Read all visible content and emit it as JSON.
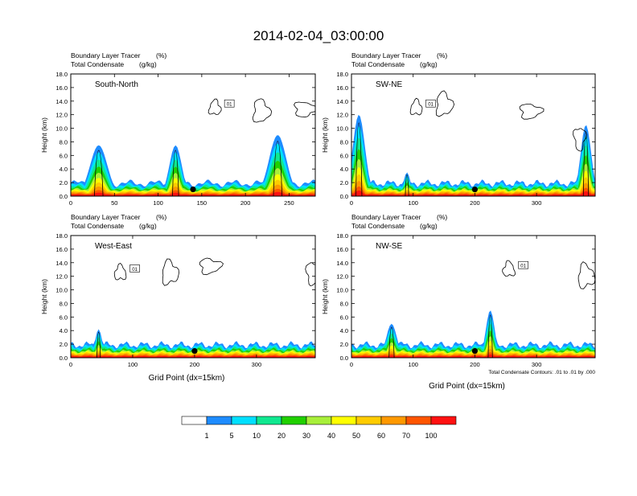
{
  "title": "2014-02-04_03:00:00",
  "legend": {
    "colors": [
      "#ffffff",
      "#1e8cff",
      "#00e0ff",
      "#10e890",
      "#20d000",
      "#a8ef3a",
      "#ffff00",
      "#ffcc00",
      "#ff9900",
      "#ff5500",
      "#ff1111"
    ],
    "labels": [
      "1",
      "5",
      "10",
      "20",
      "30",
      "40",
      "50",
      "60",
      "70",
      "100"
    ]
  },
  "common": {
    "var_label_1": "Boundary Layer Tracer",
    "var_unit_1": "(%)",
    "var_label_2": "Total Condensate",
    "var_unit_2": "(g/kg)",
    "ylabel": "Height (km)",
    "xlabel": "Grid Point (dx=15km)",
    "contour_note": "Total Condensate Contours: .01 to .01 by .000",
    "contour_label": "01"
  },
  "chart_data": [
    {
      "type": "heatmap",
      "panel_label": "South-North",
      "ylabel": "Height (km)",
      "xlabel": "",
      "xlim": [
        0,
        280
      ],
      "ylim": [
        0,
        18
      ],
      "xticks": [
        0,
        50,
        100,
        150,
        200,
        250
      ],
      "yticks": [
        "0.0",
        "2.0",
        "4.0",
        "6.0",
        "8.0",
        "10.0",
        "12.0",
        "14.0",
        "16.0",
        "18.0"
      ],
      "marker": [
        140,
        1.0
      ],
      "tracer_plumes": [
        {
          "x": 32,
          "top_km": 7.5,
          "width": 14
        },
        {
          "x": 120,
          "top_km": 7.5,
          "width": 10
        },
        {
          "x": 237,
          "top_km": 9.0,
          "width": 14
        }
      ],
      "cloud_contours_km": [
        [
          165,
          13.0
        ],
        [
          218,
          12.5
        ],
        [
          268,
          12.8
        ]
      ]
    },
    {
      "type": "heatmap",
      "panel_label": "SW-NE",
      "ylabel": "Height (km)",
      "xlabel": "",
      "xlim": [
        0,
        395
      ],
      "ylim": [
        0,
        18
      ],
      "xticks": [
        0,
        100,
        200,
        300
      ],
      "yticks": [
        "0.0",
        "2.0",
        "4.0",
        "6.0",
        "8.0",
        "10.0",
        "12.0",
        "14.0",
        "16.0",
        "18.0"
      ],
      "marker": [
        200,
        1.0
      ],
      "tracer_plumes": [
        {
          "x": 12,
          "top_km": 12.0,
          "width": 14
        },
        {
          "x": 90,
          "top_km": 3.5,
          "width": 8
        },
        {
          "x": 380,
          "top_km": 10.5,
          "width": 12
        }
      ],
      "cloud_contours_km": [
        [
          105,
          13.0
        ],
        [
          150,
          13.5
        ],
        [
          290,
          12.5
        ],
        [
          370,
          8.5
        ]
      ]
    },
    {
      "type": "heatmap",
      "panel_label": "West-East",
      "ylabel": "Height (km)",
      "xlabel": "Grid Point (dx=15km)",
      "xlim": [
        0,
        395
      ],
      "ylim": [
        0,
        18
      ],
      "xticks": [
        0,
        100,
        200,
        300
      ],
      "yticks": [
        "0.0",
        "2.0",
        "4.0",
        "6.0",
        "8.0",
        "10.0",
        "12.0",
        "14.0",
        "16.0",
        "18.0"
      ],
      "marker": [
        200,
        1.0
      ],
      "tracer_plumes": [
        {
          "x": 45,
          "top_km": 4.2,
          "width": 8
        }
      ],
      "cloud_contours_km": [
        [
          80,
          12.5
        ],
        [
          160,
          12.5
        ],
        [
          225,
          13.5
        ],
        [
          390,
          12.5
        ]
      ]
    },
    {
      "type": "heatmap",
      "panel_label": "NW-SE",
      "ylabel": "Height (km)",
      "xlabel": "Grid Point (dx=15km)",
      "xlim": [
        0,
        395
      ],
      "ylim": [
        0,
        18
      ],
      "xticks": [
        0,
        100,
        200,
        300
      ],
      "yticks": [
        "0.0",
        "2.0",
        "4.0",
        "6.0",
        "8.0",
        "10.0",
        "12.0",
        "14.0",
        "16.0",
        "18.0"
      ],
      "marker": [
        200,
        1.0
      ],
      "tracer_plumes": [
        {
          "x": 65,
          "top_km": 5.0,
          "width": 12
        },
        {
          "x": 225,
          "top_km": 7.0,
          "width": 10
        }
      ],
      "cloud_contours_km": [
        [
          255,
          13.0
        ],
        [
          380,
          12.0
        ]
      ]
    }
  ]
}
